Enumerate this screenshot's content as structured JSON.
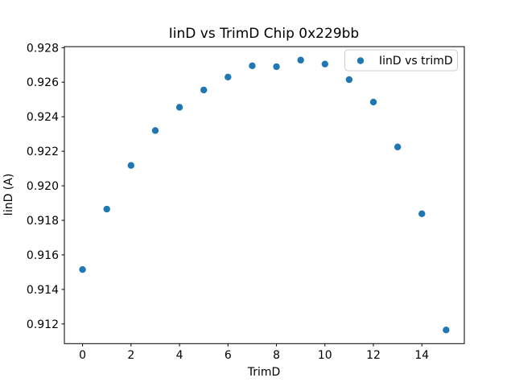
{
  "figure": {
    "background": "#ffffff",
    "frame_color": "#000000",
    "text_color": "#000000"
  },
  "chart_data": {
    "type": "scatter",
    "title": "IinD vs TrimD Chip 0x229bb",
    "xlabel": "TrimD",
    "ylabel": "IinD (A)",
    "grid": false,
    "xlim": [
      -0.75,
      15.75
    ],
    "ylim": [
      0.91086,
      0.92806
    ],
    "x_ticks": [
      0,
      2,
      4,
      6,
      8,
      10,
      12,
      14
    ],
    "x_tick_labels": [
      "0",
      "2",
      "4",
      "6",
      "8",
      "10",
      "12",
      "14"
    ],
    "y_ticks": [
      0.912,
      0.914,
      0.916,
      0.918,
      0.92,
      0.922,
      0.924,
      0.926,
      0.928
    ],
    "y_tick_labels": [
      "0.912",
      "0.914",
      "0.916",
      "0.918",
      "0.920",
      "0.922",
      "0.924",
      "0.926",
      "0.928"
    ],
    "legend": {
      "position": "upper right",
      "entries": [
        "IinD vs trimD"
      ],
      "marker": "circle",
      "marker_color": "#1f77b4",
      "border_color": "#cccccc",
      "background": "#ffffff"
    },
    "series": [
      {
        "name": "IinD vs trimD",
        "marker": "circle",
        "color": "#1f77b4",
        "x": [
          0,
          1,
          2,
          3,
          4,
          5,
          6,
          7,
          8,
          9,
          10,
          11,
          12,
          13,
          14,
          15
        ],
        "y": [
          0.91515,
          0.91865,
          0.92118,
          0.9232,
          0.92455,
          0.92555,
          0.9263,
          0.92695,
          0.9269,
          0.92728,
          0.92705,
          0.92615,
          0.92485,
          0.92225,
          0.91838,
          0.91165
        ]
      }
    ]
  }
}
